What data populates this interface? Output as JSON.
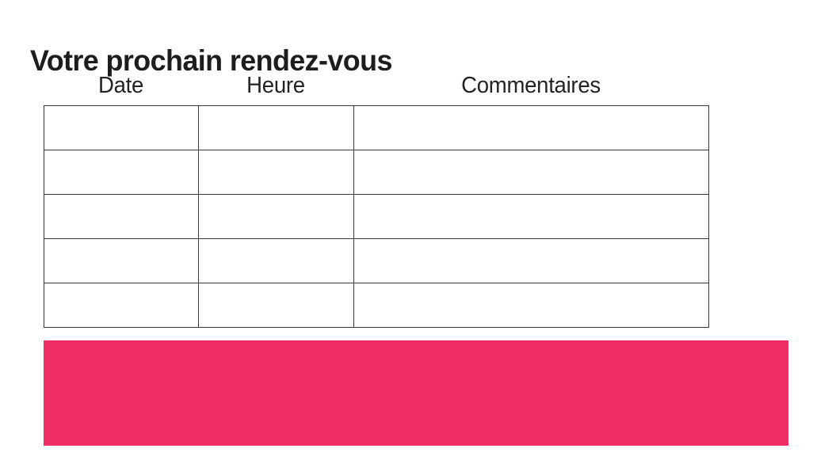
{
  "title": "Votre prochain rendez-vous",
  "table": {
    "headers": [
      "Date",
      "Heure",
      "Commentaires"
    ],
    "rows": [
      [
        "",
        "",
        ""
      ],
      [
        "",
        "",
        ""
      ],
      [
        "",
        "",
        ""
      ],
      [
        "",
        "",
        ""
      ],
      [
        "",
        "",
        ""
      ]
    ]
  },
  "banner": {
    "color": "#ee2d67"
  },
  "colors": {
    "table_border": "#383838",
    "title_text": "#1d1d1b"
  }
}
